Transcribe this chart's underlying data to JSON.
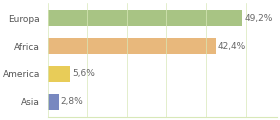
{
  "categories": [
    "Europa",
    "Africa",
    "America",
    "Asia"
  ],
  "values": [
    49.2,
    42.4,
    5.6,
    2.8
  ],
  "labels": [
    "49,2%",
    "42,4%",
    "5,6%",
    "2,8%"
  ],
  "bar_colors": [
    "#a8c484",
    "#e8b87c",
    "#e8cc58",
    "#7888c0"
  ],
  "background_color": "#ffffff",
  "grid_color": "#d8e8b8",
  "xlim": [
    0,
    58
  ],
  "label_fontsize": 6.5,
  "tick_fontsize": 6.5,
  "bar_height": 0.55
}
